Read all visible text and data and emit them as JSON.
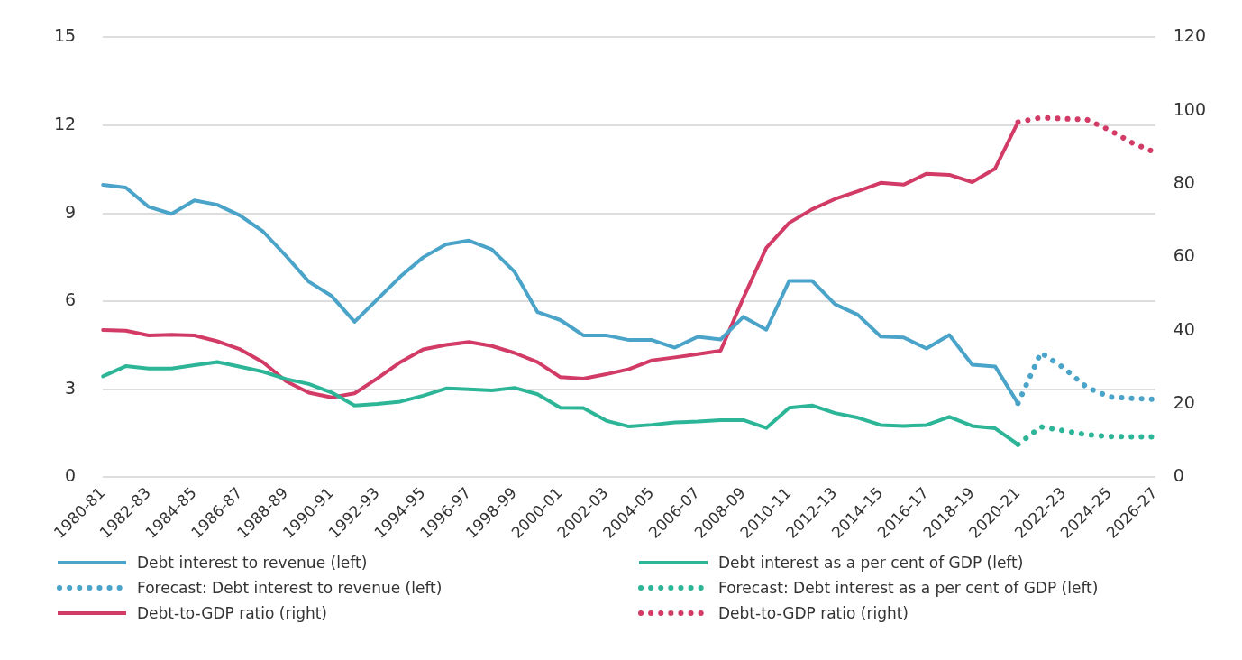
{
  "chart_data": {
    "type": "line",
    "categories": [
      "1980-81",
      null,
      "1982-83",
      null,
      "1984-85",
      null,
      "1986-87",
      null,
      "1988-89",
      null,
      "1990-91",
      null,
      "1992-93",
      null,
      "1994-95",
      null,
      "1996-97",
      null,
      "1998-99",
      null,
      "2000-01",
      null,
      "2002-03",
      null,
      "2004-05",
      null,
      "2006-07",
      null,
      "2008-09",
      null,
      "2010-11",
      null,
      "2012-13",
      null,
      "2014-15",
      null,
      "2016-17",
      null,
      "2018-19",
      null,
      "2020-21",
      null,
      "2022-23",
      null,
      "2024-25",
      null,
      "2026-27"
    ],
    "series": [
      {
        "name": "Debt interest to revenue (left)",
        "color": "#4aa3c8",
        "line_style": "solid",
        "axis": "y",
        "values": [
          9.97,
          9.88,
          9.22,
          8.98,
          9.44,
          9.29,
          8.92,
          8.38,
          7.55,
          6.67,
          6.18,
          5.3,
          6.07,
          6.84,
          7.5,
          7.94,
          8.07,
          7.77,
          7.0,
          5.63,
          5.36,
          4.84,
          4.84,
          4.68,
          4.68,
          4.42,
          4.79,
          4.7,
          5.47,
          5.03,
          6.7,
          6.7,
          5.9,
          5.54,
          4.8,
          4.77,
          4.39,
          4.85,
          3.84,
          3.78,
          2.52,
          null,
          null,
          null,
          null,
          null,
          null
        ]
      },
      {
        "name": "Debt interest as a per cent of GDP (left)",
        "color": "#2db597",
        "line_style": "solid",
        "axis": "y",
        "values": [
          3.44,
          3.79,
          3.71,
          3.71,
          3.82,
          3.93,
          3.77,
          3.6,
          3.35,
          3.18,
          2.89,
          2.45,
          2.5,
          2.58,
          2.78,
          3.03,
          3.0,
          2.96,
          3.05,
          2.83,
          2.37,
          2.36,
          1.93,
          1.73,
          1.79,
          1.87,
          1.9,
          1.95,
          1.95,
          1.68,
          2.37,
          2.45,
          2.19,
          2.03,
          1.78,
          1.75,
          1.78,
          2.06,
          1.75,
          1.67,
          1.12,
          null,
          null,
          null,
          null,
          null,
          null
        ]
      },
      {
        "name": "Forecast: Debt interest to revenue (left)",
        "color": "#4aa3c8",
        "line_style": "dotted",
        "axis": "y",
        "values": [
          null,
          null,
          null,
          null,
          null,
          null,
          null,
          null,
          null,
          null,
          null,
          null,
          null,
          null,
          null,
          null,
          null,
          null,
          null,
          null,
          null,
          null,
          null,
          null,
          null,
          null,
          null,
          null,
          null,
          null,
          null,
          null,
          null,
          null,
          null,
          null,
          null,
          null,
          null,
          null,
          2.52,
          4.25,
          3.73,
          3.07,
          2.74,
          2.69,
          2.66
        ]
      },
      {
        "name": "Forecast: Debt interest as a per cent of GDP (left)",
        "color": "#2db597",
        "line_style": "dotted",
        "axis": "y",
        "values": [
          null,
          null,
          null,
          null,
          null,
          null,
          null,
          null,
          null,
          null,
          null,
          null,
          null,
          null,
          null,
          null,
          null,
          null,
          null,
          null,
          null,
          null,
          null,
          null,
          null,
          null,
          null,
          null,
          null,
          null,
          null,
          null,
          null,
          null,
          null,
          null,
          null,
          null,
          null,
          null,
          1.12,
          1.72,
          1.59,
          1.45,
          1.39,
          1.38,
          1.38
        ]
      },
      {
        "name": "Debt-to-GDP ratio (right)",
        "color": "#d23b66",
        "line_style": "solid",
        "axis": "y2",
        "values": [
          40.2,
          40.0,
          38.7,
          38.9,
          38.7,
          37.1,
          34.9,
          31.4,
          26.2,
          23.1,
          21.8,
          22.9,
          27.0,
          31.4,
          34.9,
          36.1,
          36.9,
          35.8,
          33.9,
          31.4,
          27.3,
          26.9,
          28.1,
          29.5,
          31.9,
          32.7,
          33.6,
          34.5,
          49.0,
          62.6,
          69.4,
          73.1,
          75.9,
          78.0,
          80.3,
          79.8,
          82.8,
          82.5,
          80.5,
          84.2,
          96.9,
          null,
          null,
          null,
          null,
          null,
          null
        ]
      },
      {
        "name": "Debt-to-GDP ratio (right)",
        "color": "#d23b66",
        "line_style": "dotted",
        "axis": "y2",
        "values": [
          null,
          null,
          null,
          null,
          null,
          null,
          null,
          null,
          null,
          null,
          null,
          null,
          null,
          null,
          null,
          null,
          null,
          null,
          null,
          null,
          null,
          null,
          null,
          null,
          null,
          null,
          null,
          null,
          null,
          null,
          null,
          null,
          null,
          null,
          null,
          null,
          null,
          null,
          null,
          null,
          96.9,
          98.1,
          97.8,
          97.6,
          94.7,
          91.2,
          88.6
        ]
      }
    ],
    "ylim": [
      0,
      15
    ],
    "yticks": [
      0,
      3,
      6,
      9,
      12,
      15
    ],
    "y2lim": [
      0,
      120
    ],
    "y2ticks": [
      0,
      20,
      40,
      60,
      80,
      100,
      120
    ],
    "grid": "y",
    "legend": "bottom",
    "marker": "none"
  }
}
